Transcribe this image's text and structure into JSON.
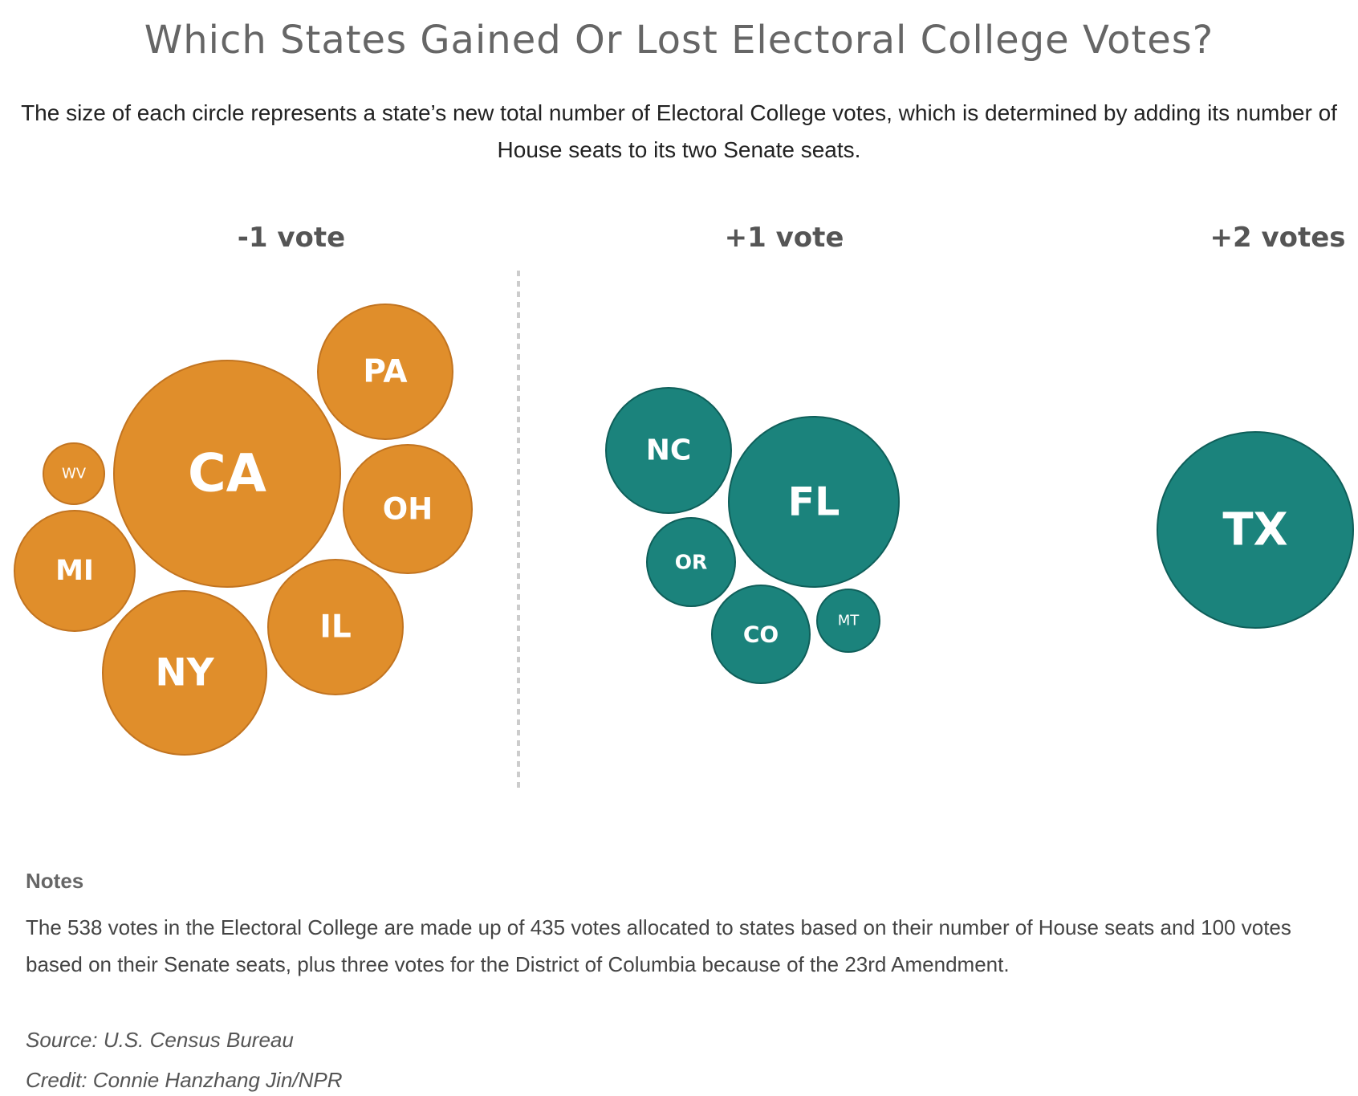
{
  "title": "Which States Gained Or Lost Electoral College Votes?",
  "subtitle": "The size of each circle represents a state’s new total number of Electoral College votes, which is determined by adding its number of House seats to its two Senate seats.",
  "colors": {
    "loss": "#E08E2B",
    "loss_stroke": "#C27420",
    "gain": "#1B837C",
    "gain_stroke": "#0F5F5A",
    "divider": "#CCCCCC"
  },
  "chart_data": {
    "type": "bubble",
    "groups": [
      {
        "label": "-1 vote",
        "change": -1,
        "states": [
          "CA",
          "NY",
          "PA",
          "OH",
          "IL",
          "MI",
          "WV"
        ]
      },
      {
        "label": "+1 vote",
        "change": 1,
        "states": [
          "FL",
          "NC",
          "OR",
          "CO",
          "MT"
        ]
      },
      {
        "label": "+2 votes",
        "change": 2,
        "states": [
          "TX"
        ]
      }
    ]
  },
  "notes": {
    "heading": "Notes",
    "body": "The 538 votes in the Electoral College are made up of 435 votes allocated to states based on their number of House seats and 100 votes based on their Senate seats, plus three votes for the District of Columbia because of the 23rd Amendment."
  },
  "source": "Source: U.S. Census Bureau",
  "credit": "Credit: Connie Hanzhang Jin/NPR"
}
